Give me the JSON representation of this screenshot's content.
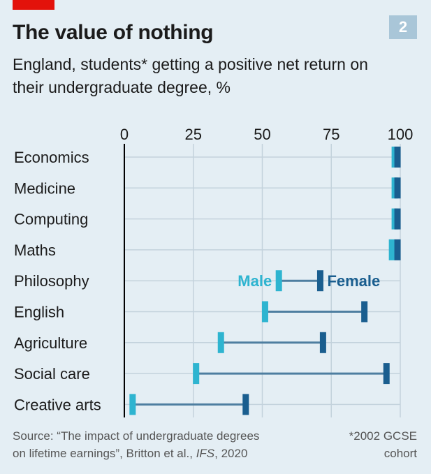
{
  "header": {
    "title": "The value of nothing",
    "subtitle": "England, students* getting a positive net return on their undergraduate degree, %",
    "badge": "2"
  },
  "colors": {
    "background": "#e4eef4",
    "male": "#2eb4d0",
    "female": "#1a5e8f",
    "connector": "#4e7ea0",
    "gridline": "#c3d2dc",
    "axis": "#000000",
    "accent_tag": "#e3120b"
  },
  "chart_data": {
    "type": "dumbbell",
    "x_ticks": [
      0,
      25,
      50,
      75,
      100
    ],
    "xlim": [
      0,
      100
    ],
    "grid": true,
    "categories": [
      "Economics",
      "Medicine",
      "Computing",
      "Maths",
      "Philosophy",
      "English",
      "Agriculture",
      "Social care",
      "Creative arts"
    ],
    "series": [
      {
        "name": "Male",
        "values": [
          98,
          98,
          98,
          97,
          56,
          51,
          35,
          26,
          3
        ]
      },
      {
        "name": "Female",
        "values": [
          99,
          99,
          99,
          99,
          71,
          87,
          72,
          95,
          44
        ]
      }
    ],
    "legend_row": "Philosophy"
  },
  "footer": {
    "source_line1": "Source: “The impact of undergraduate degrees",
    "source_line2_a": "on lifetime earnings”, Britton et al., ",
    "source_line2_b": "IFS",
    "source_line2_c": ", 2020",
    "footnote_line1": "*2002 GCSE",
    "footnote_line2": "cohort"
  }
}
